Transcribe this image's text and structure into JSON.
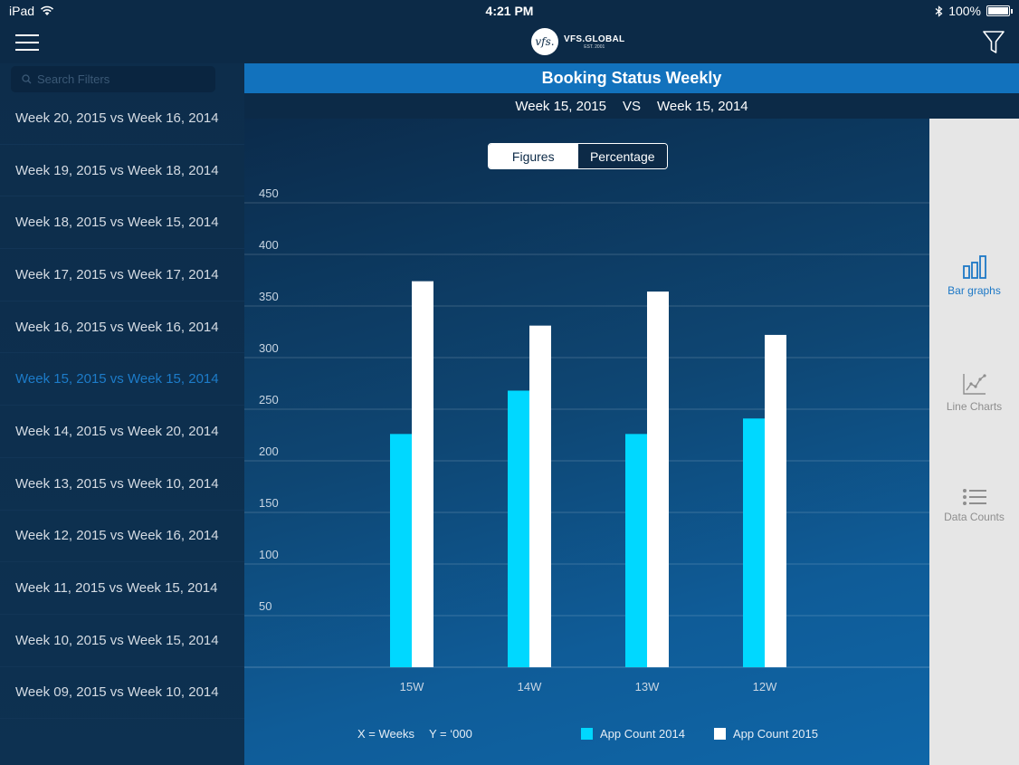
{
  "status_bar": {
    "device": "iPad",
    "time": "4:21 PM",
    "battery": "100%"
  },
  "nav": {
    "logo_mark": "vfs.",
    "logo_text": "VFS.GLOBAL",
    "logo_sub": "EST. 2001"
  },
  "sidebar": {
    "search_placeholder": "Search Filters",
    "items": [
      {
        "label": "Week 20, 2015 vs Week 16, 2014",
        "active": false
      },
      {
        "label": "Week 19, 2015 vs Week 18, 2014",
        "active": false
      },
      {
        "label": "Week 18, 2015 vs Week 15, 2014",
        "active": false
      },
      {
        "label": "Week 17, 2015 vs Week 17, 2014",
        "active": false
      },
      {
        "label": "Week 16, 2015 vs Week 16, 2014",
        "active": false
      },
      {
        "label": "Week 15, 2015 vs Week 15, 2014",
        "active": true
      },
      {
        "label": "Week 14, 2015 vs Week 20, 2014",
        "active": false
      },
      {
        "label": "Week 13, 2015 vs Week 10, 2014",
        "active": false
      },
      {
        "label": "Week 12, 2015 vs Week 16, 2014",
        "active": false
      },
      {
        "label": "Week 11, 2015 vs Week 15, 2014",
        "active": false
      },
      {
        "label": "Week 10, 2015 vs Week 15, 2014",
        "active": false
      },
      {
        "label": "Week 09, 2015 vs Week 10, 2014",
        "active": false
      }
    ]
  },
  "main": {
    "title": "Booking Status Weekly",
    "compare_left": "Week 15, 2015",
    "compare_vs": "VS",
    "compare_right": "Week 15, 2014",
    "toggle": {
      "figures": "Figures",
      "percentage": "Percentage",
      "selected": "Figures"
    },
    "units_x": "X = Weeks",
    "units_y": "Y = ‘000"
  },
  "right_panel": {
    "bar_graphs": "Bar graphs",
    "line_charts": "Line Charts",
    "data_counts": "Data Counts",
    "selected": "Bar graphs"
  },
  "colors": {
    "series_2014": "#00d8ff",
    "series_2015": "#ffffff",
    "accent": "#1272bd"
  },
  "chart_data": {
    "type": "bar",
    "categories": [
      "15W",
      "14W",
      "13W",
      "12W"
    ],
    "series": [
      {
        "name": "App Count 2014",
        "values": [
          226,
          268,
          226,
          241
        ]
      },
      {
        "name": "App Count 2015",
        "values": [
          374,
          331,
          364,
          322
        ]
      }
    ],
    "ylim": [
      0,
      450
    ],
    "yticks": [
      50,
      100,
      150,
      200,
      250,
      300,
      350,
      400,
      450
    ],
    "grid": true,
    "legend": "bottom"
  }
}
